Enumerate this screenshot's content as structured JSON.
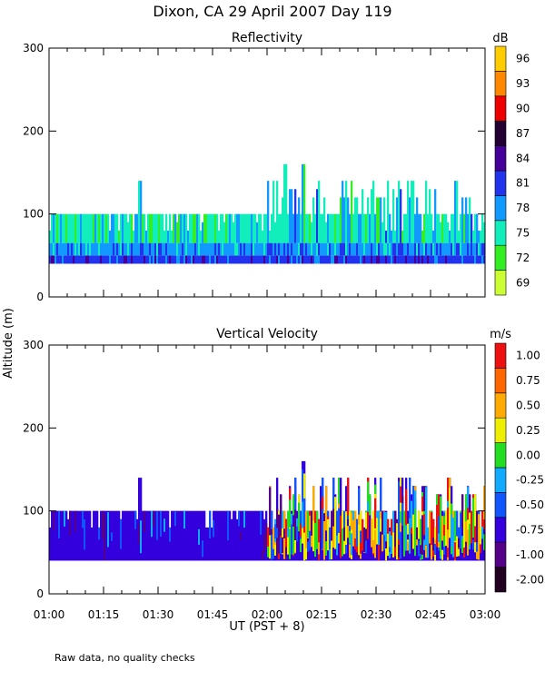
{
  "title": "Dixon, CA 29 April 2007  Day 119",
  "ylabel": "Altitude (m)",
  "xlabel": "UT  (PST + 8)",
  "note": "Raw data, no quality checks",
  "chart_data": [
    {
      "type": "heatmap",
      "title": "Reflectivity",
      "ylabel": "Altitude (m)",
      "xlabel": "UT  (PST + 8)",
      "x_tick_labels": [
        "01:00",
        "01:15",
        "01:30",
        "01:45",
        "02:00",
        "02:15",
        "02:30",
        "02:45",
        "03:00"
      ],
      "x_range_minutes_ut": [
        60,
        180
      ],
      "y_ticks": [
        0,
        100,
        200,
        300
      ],
      "ylim": [
        0,
        300
      ],
      "colorbar": {
        "unit": "dB",
        "labels": [
          "69",
          "72",
          "75",
          "78",
          "81",
          "84",
          "87",
          "90",
          "93",
          "96"
        ],
        "colors": [
          "#ccff33",
          "#33ee22",
          "#11eebb",
          "#1199ff",
          "#2233ee",
          "#440099",
          "#220033",
          "#ee0000",
          "#ff8800",
          "#ffcc00"
        ]
      },
      "data_extent": {
        "altitude_floor_m": 40,
        "typical_top_m": 100,
        "max_top_m": 160
      },
      "band_profile": {
        "layers_bottom_to_top": [
          {
            "from_m": 40,
            "to_m": 50,
            "value_db": 81
          },
          {
            "from_m": 50,
            "to_m": 65,
            "value_db": 78
          },
          {
            "from_m": 65,
            "to_m": 100,
            "value_db": 75
          }
        ],
        "sparse_plumes": [
          {
            "time": "01:25",
            "top_m": 140
          },
          {
            "time": "02:05",
            "top_m": 160
          },
          {
            "time": "02:10",
            "top_m": 160
          },
          {
            "time": "02:40",
            "top_m": 140
          }
        ]
      }
    },
    {
      "type": "heatmap",
      "title": "Vertical Velocity",
      "ylabel": "Altitude (m)",
      "xlabel": "UT  (PST + 8)",
      "x_tick_labels": [
        "01:00",
        "01:15",
        "01:30",
        "01:45",
        "02:00",
        "02:15",
        "02:30",
        "02:45",
        "03:00"
      ],
      "x_range_minutes_ut": [
        60,
        180
      ],
      "y_ticks": [
        0,
        100,
        200,
        300
      ],
      "ylim": [
        0,
        300
      ],
      "colorbar": {
        "unit": "m/s",
        "labels": [
          "-2.00",
          "-1.00",
          "-0.75",
          "-0.50",
          "-0.25",
          "0.00",
          "0.25",
          "0.50",
          "0.75",
          "1.00"
        ],
        "colors": [
          "#220022",
          "#550088",
          "#3300dd",
          "#1155ff",
          "#11aaff",
          "#22dd22",
          "#eeee00",
          "#ffaa00",
          "#ff6600",
          "#ee1111"
        ]
      },
      "data_extent": {
        "altitude_floor_m": 40,
        "typical_top_m": 100,
        "max_top_m": 160
      },
      "band_profile": {
        "dominant_value_ms": -0.75,
        "calm_period": [
          "01:00",
          "02:00"
        ],
        "active_period": [
          "02:00",
          "03:00"
        ],
        "sparse_plumes": [
          {
            "time": "01:25",
            "top_m": 140
          },
          {
            "time": "02:10",
            "top_m": 160
          },
          {
            "time": "02:20",
            "top_m": 140
          },
          {
            "time": "02:50",
            "top_m": 140
          }
        ]
      }
    }
  ]
}
